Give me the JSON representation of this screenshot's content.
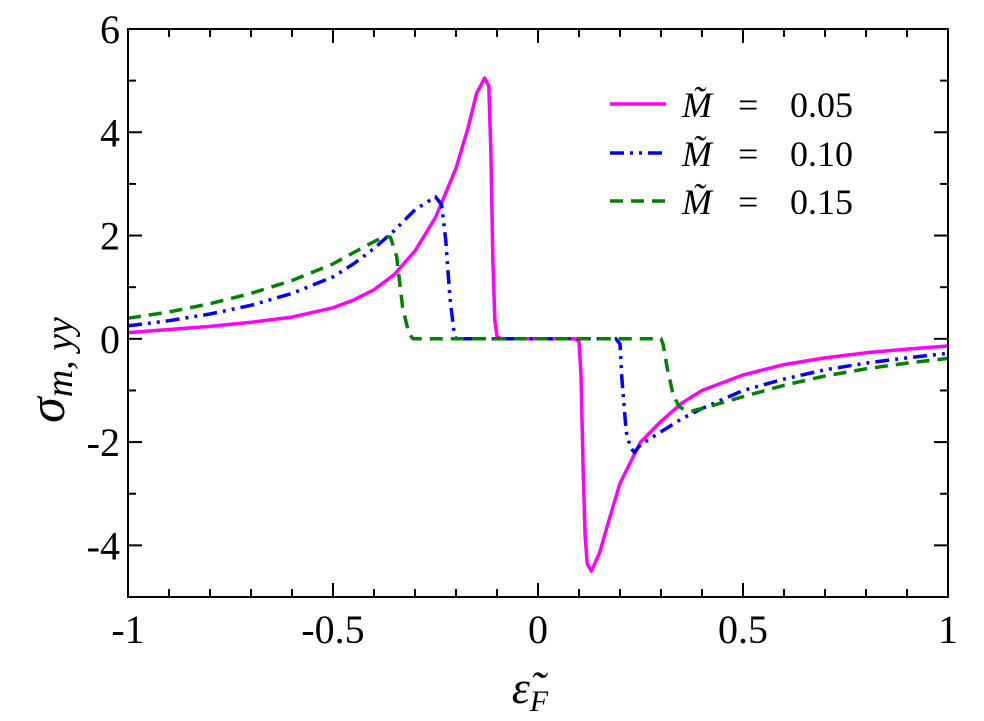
{
  "chart_data": {
    "type": "line",
    "title": "",
    "xlabel": "ε̃",
    "xlabel_sub": "F",
    "ylabel": "σ",
    "ylabel_sub": "m, yy",
    "xlim": [
      -1,
      1
    ],
    "ylim": [
      -5,
      6
    ],
    "xticks": [
      -1,
      -0.5,
      0,
      0.5,
      1
    ],
    "xtick_labels": [
      "-1",
      "-0.5",
      "0",
      "0.5",
      "1"
    ],
    "yticks": [
      -4,
      -2,
      0,
      2,
      4,
      6
    ],
    "ytick_labels": [
      "-4",
      "-2",
      "0",
      "2",
      "4",
      "6"
    ],
    "grid": false,
    "legend_position": "top-right",
    "series": [
      {
        "name": "M̃ = 0.05",
        "legend_symbol": "M̃",
        "legend_eq": "=",
        "legend_value": "0.05",
        "color": "#ff00ff",
        "dash": "solid",
        "x": [
          -1,
          -0.9,
          -0.8,
          -0.7,
          -0.6,
          -0.5,
          -0.45,
          -0.4,
          -0.35,
          -0.3,
          -0.25,
          -0.2,
          -0.17,
          -0.15,
          -0.13,
          -0.12,
          -0.115,
          -0.11,
          -0.105,
          -0.1,
          -0.09,
          -0.05,
          0,
          0.05,
          0.09,
          0.1,
          0.105,
          0.11,
          0.115,
          0.12,
          0.13,
          0.15,
          0.17,
          0.2,
          0.25,
          0.3,
          0.35,
          0.4,
          0.5,
          0.6,
          0.7,
          0.8,
          0.9,
          1
        ],
        "y": [
          0.12,
          0.18,
          0.24,
          0.32,
          0.42,
          0.6,
          0.75,
          0.95,
          1.25,
          1.7,
          2.35,
          3.3,
          4.1,
          4.75,
          5.05,
          4.9,
          3.6,
          1.5,
          0.35,
          0.05,
          0,
          0,
          0,
          0,
          0,
          -0.05,
          -0.7,
          -2.5,
          -3.8,
          -4.35,
          -4.5,
          -4.15,
          -3.6,
          -2.8,
          -2.0,
          -1.6,
          -1.25,
          -1.0,
          -0.7,
          -0.5,
          -0.37,
          -0.27,
          -0.2,
          -0.14
        ]
      },
      {
        "name": "M̃ = 0.10",
        "legend_symbol": "M̃",
        "legend_eq": "=",
        "legend_value": "0.10",
        "color": "#0000ff",
        "dash": "dashdotdot",
        "x": [
          -1,
          -0.9,
          -0.8,
          -0.7,
          -0.6,
          -0.5,
          -0.45,
          -0.4,
          -0.35,
          -0.3,
          -0.25,
          -0.235,
          -0.225,
          -0.215,
          -0.205,
          -0.2,
          -0.19,
          -0.1,
          0,
          0.1,
          0.19,
          0.2,
          0.205,
          0.215,
          0.225,
          0.235,
          0.25,
          0.3,
          0.35,
          0.4,
          0.5,
          0.6,
          0.7,
          0.8,
          0.9,
          1
        ],
        "y": [
          0.25,
          0.35,
          0.48,
          0.65,
          0.88,
          1.2,
          1.45,
          1.75,
          2.1,
          2.5,
          2.75,
          2.6,
          1.9,
          0.8,
          0.15,
          0,
          0,
          0,
          0,
          0,
          0,
          -0.1,
          -0.8,
          -1.8,
          -2.1,
          -2.2,
          -2.05,
          -1.8,
          -1.55,
          -1.35,
          -1.0,
          -0.78,
          -0.6,
          -0.47,
          -0.37,
          -0.28
        ]
      },
      {
        "name": "M̃ = 0.15",
        "legend_symbol": "M̃",
        "legend_eq": "=",
        "legend_value": "0.15",
        "color": "#008000",
        "dash": "dashed",
        "x": [
          -1,
          -0.9,
          -0.8,
          -0.7,
          -0.6,
          -0.5,
          -0.45,
          -0.4,
          -0.375,
          -0.36,
          -0.345,
          -0.33,
          -0.315,
          -0.305,
          -0.3,
          -0.2,
          -0.1,
          0,
          0.1,
          0.2,
          0.3,
          0.305,
          0.315,
          0.33,
          0.345,
          0.36,
          0.375,
          0.4,
          0.5,
          0.6,
          0.7,
          0.8,
          0.9,
          1
        ],
        "y": [
          0.4,
          0.52,
          0.68,
          0.88,
          1.13,
          1.45,
          1.67,
          1.88,
          1.98,
          1.97,
          1.6,
          0.6,
          0.1,
          0,
          0,
          0,
          0,
          0,
          0,
          0,
          0,
          -0.1,
          -0.55,
          -1.1,
          -1.32,
          -1.38,
          -1.4,
          -1.35,
          -1.12,
          -0.9,
          -0.72,
          -0.58,
          -0.47,
          -0.38
        ]
      }
    ]
  }
}
